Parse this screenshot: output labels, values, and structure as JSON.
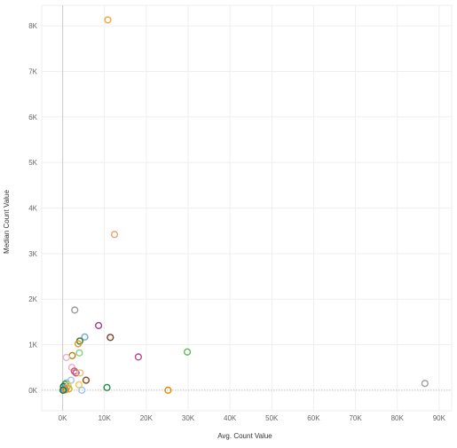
{
  "chart_data": {
    "type": "scatter",
    "xlabel": "Avg. Count Value",
    "ylabel": "Median Count Value",
    "xlim": [
      -5000,
      93000
    ],
    "ylim": [
      -450,
      8450
    ],
    "x_ticks": [
      0,
      10000,
      20000,
      30000,
      40000,
      50000,
      60000,
      70000,
      80000,
      90000
    ],
    "x_tick_labels": [
      "0K",
      "10K",
      "20K",
      "30K",
      "40K",
      "50K",
      "60K",
      "70K",
      "80K",
      "90K"
    ],
    "y_ticks": [
      0,
      1000,
      2000,
      3000,
      4000,
      5000,
      6000,
      7000,
      8000
    ],
    "y_tick_labels": [
      "0K",
      "1K",
      "2K",
      "3K",
      "4K",
      "5K",
      "6K",
      "7K",
      "8K"
    ],
    "grid": true,
    "marker": "hollow-circle",
    "points": [
      {
        "x": 10800,
        "y": 8130,
        "color": "#f2a63b"
      },
      {
        "x": 12400,
        "y": 3420,
        "color": "#f0a070"
      },
      {
        "x": 2900,
        "y": 1760,
        "color": "#9b9b9b"
      },
      {
        "x": 8600,
        "y": 1420,
        "color": "#a63f8f"
      },
      {
        "x": 5300,
        "y": 1170,
        "color": "#6fa8dc"
      },
      {
        "x": 11400,
        "y": 1160,
        "color": "#7b3f1e"
      },
      {
        "x": 4100,
        "y": 1080,
        "color": "#2e7d32"
      },
      {
        "x": 3700,
        "y": 1020,
        "color": "#e39c2b"
      },
      {
        "x": 29800,
        "y": 840,
        "color": "#5cb85c"
      },
      {
        "x": 4000,
        "y": 820,
        "color": "#8bc98b"
      },
      {
        "x": 2300,
        "y": 760,
        "color": "#b8860b"
      },
      {
        "x": 18100,
        "y": 730,
        "color": "#b5478f"
      },
      {
        "x": 900,
        "y": 720,
        "color": "#e8b4c8"
      },
      {
        "x": 2200,
        "y": 500,
        "color": "#f4a7c0"
      },
      {
        "x": 2800,
        "y": 420,
        "color": "#d9536b"
      },
      {
        "x": 3200,
        "y": 380,
        "color": "#c05080"
      },
      {
        "x": 4200,
        "y": 380,
        "color": "#f0c080"
      },
      {
        "x": 5600,
        "y": 220,
        "color": "#8b4513"
      },
      {
        "x": 2000,
        "y": 220,
        "color": "#9ec8e8"
      },
      {
        "x": 900,
        "y": 160,
        "color": "#7bb7e0"
      },
      {
        "x": 600,
        "y": 130,
        "color": "#2ca02c"
      },
      {
        "x": 1300,
        "y": 100,
        "color": "#f2c94c"
      },
      {
        "x": 3900,
        "y": 120,
        "color": "#f2c94c"
      },
      {
        "x": 200,
        "y": 80,
        "color": "#1f6f3f"
      },
      {
        "x": 1000,
        "y": 60,
        "color": "#f4b183"
      },
      {
        "x": 500,
        "y": 40,
        "color": "#e377c2"
      },
      {
        "x": 1500,
        "y": 30,
        "color": "#bcbd22"
      },
      {
        "x": 300,
        "y": 20,
        "color": "#17becf"
      },
      {
        "x": 700,
        "y": 10,
        "color": "#ff7f0e"
      },
      {
        "x": 100,
        "y": 0,
        "color": "#1a7a4a"
      },
      {
        "x": 4600,
        "y": 0,
        "color": "#a0c4e4"
      },
      {
        "x": 10600,
        "y": 60,
        "color": "#1e8f3e"
      },
      {
        "x": 25200,
        "y": 0,
        "color": "#e08a00"
      },
      {
        "x": 86600,
        "y": 150,
        "color": "#9e9e9e"
      }
    ]
  }
}
